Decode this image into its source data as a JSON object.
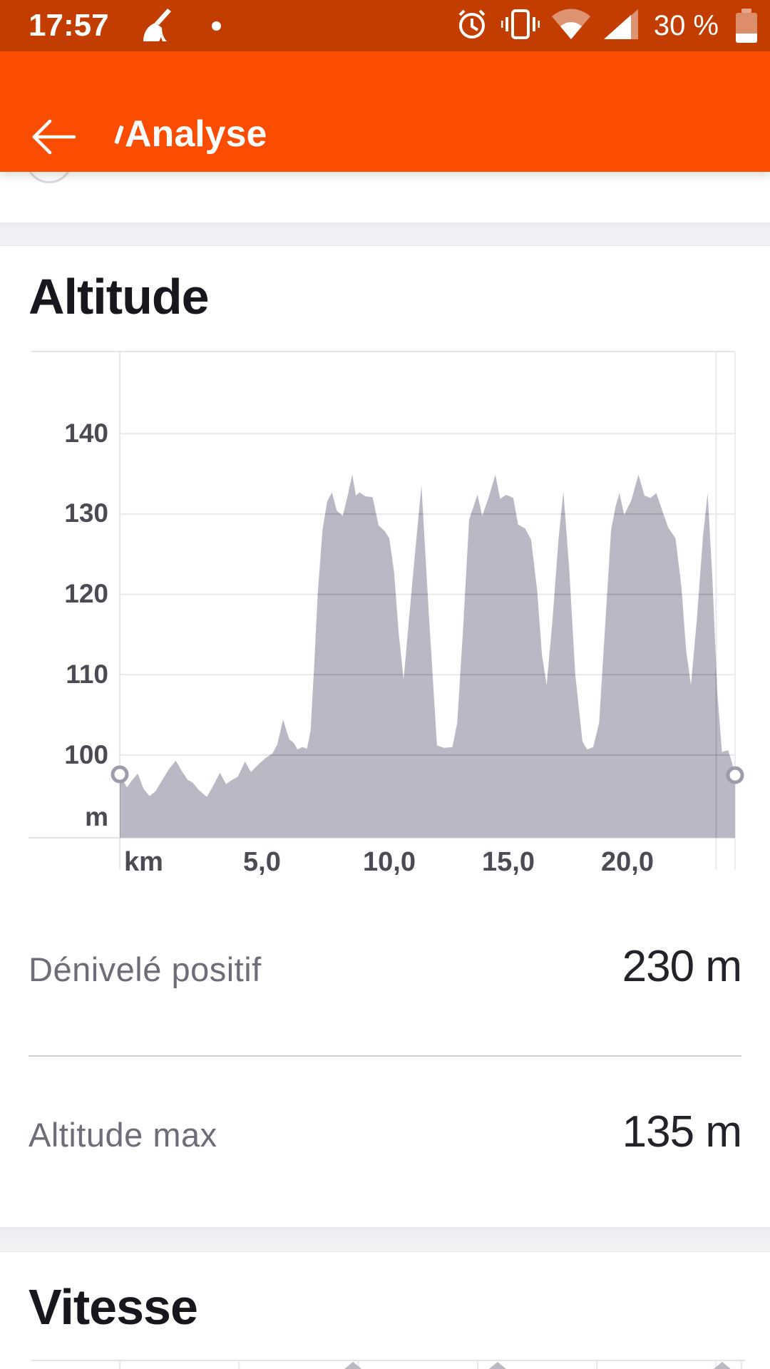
{
  "colors": {
    "accent": "#FB4D01",
    "status_bar_bg": "#C33D00",
    "chart_fill": "#B9B9C6",
    "grid_line": "#E7E7EB",
    "marker_stroke": "#9C9CAB",
    "title_text": "#17171D",
    "label_text": "#6D6D77",
    "value_text": "#222228"
  },
  "status_bar": {
    "time": "17:57",
    "battery_text": "30 %",
    "icons": [
      "broom-icon",
      "notification-dot",
      "alarm-icon",
      "vibrate-icon",
      "wifi-icon",
      "signal-icon",
      "battery-icon"
    ]
  },
  "header": {
    "title": "Analyse",
    "back_icon": "arrow-left-icon"
  },
  "altitude_section": {
    "title": "Altitude",
    "stats": [
      {
        "label": "Dénivelé positif",
        "value": "230 m"
      },
      {
        "label": "Altitude max",
        "value": "135 m"
      }
    ]
  },
  "speed_section": {
    "title": "Vitesse"
  },
  "chart_data": [
    {
      "type": "area",
      "title": "Altitude",
      "xlabel": "km",
      "ylabel": "m",
      "x_tick_labels": [
        "km",
        "5,0",
        "10,0",
        "15,0",
        "20,0"
      ],
      "x_tick_values_km": [
        0,
        5,
        10,
        15,
        20
      ],
      "y_tick_labels": [
        "140",
        "130",
        "120",
        "110",
        "100"
      ],
      "y_tick_values_m": [
        140,
        130,
        120,
        110,
        100
      ],
      "x_range_km": [
        0,
        25.8
      ],
      "y_visible_range_m": [
        89.7,
        150.3
      ],
      "grid": true,
      "start_marker": {
        "km": 0.0,
        "alt_m": 97.6
      },
      "end_marker": {
        "km": 25.8,
        "alt_m": 97.5
      },
      "series": [
        {
          "name": "altitude_m",
          "points": [
            [
              0.0,
              97.6
            ],
            [
              0.3,
              96.0
            ],
            [
              0.5,
              96.8
            ],
            [
              0.75,
              97.7
            ],
            [
              1.0,
              95.8
            ],
            [
              1.25,
              94.9
            ],
            [
              1.5,
              95.5
            ],
            [
              1.8,
              97.0
            ],
            [
              2.1,
              98.4
            ],
            [
              2.35,
              99.3
            ],
            [
              2.6,
              98.0
            ],
            [
              2.85,
              96.9
            ],
            [
              3.05,
              96.6
            ],
            [
              3.3,
              95.7
            ],
            [
              3.65,
              94.8
            ],
            [
              3.9,
              96.1
            ],
            [
              4.2,
              97.8
            ],
            [
              4.45,
              96.4
            ],
            [
              4.7,
              96.9
            ],
            [
              4.95,
              97.3
            ],
            [
              5.25,
              99.2
            ],
            [
              5.5,
              97.9
            ],
            [
              5.8,
              98.8
            ],
            [
              6.1,
              99.6
            ],
            [
              6.4,
              100.2
            ],
            [
              6.6,
              101.3
            ],
            [
              6.85,
              104.4
            ],
            [
              7.1,
              102.0
            ],
            [
              7.3,
              101.5
            ],
            [
              7.45,
              100.7
            ],
            [
              7.65,
              101.0
            ],
            [
              7.85,
              100.8
            ],
            [
              8.0,
              103.0
            ],
            [
              8.15,
              111.0
            ],
            [
              8.3,
              120.0
            ],
            [
              8.5,
              128.0
            ],
            [
              8.7,
              131.6
            ],
            [
              8.9,
              132.7
            ],
            [
              9.1,
              130.4
            ],
            [
              9.35,
              129.8
            ],
            [
              9.55,
              132.2
            ],
            [
              9.75,
              134.9
            ],
            [
              9.9,
              132.3
            ],
            [
              10.05,
              132.7
            ],
            [
              10.3,
              132.2
            ],
            [
              10.6,
              132.1
            ],
            [
              10.85,
              128.6
            ],
            [
              11.1,
              127.9
            ],
            [
              11.3,
              127.0
            ],
            [
              11.5,
              122.8
            ],
            [
              11.7,
              115.0
            ],
            [
              11.9,
              109.4
            ],
            [
              12.25,
              121.0
            ],
            [
              12.65,
              133.6
            ],
            [
              12.95,
              118.0
            ],
            [
              13.3,
              101.2
            ],
            [
              13.6,
              100.9
            ],
            [
              13.95,
              101.0
            ],
            [
              14.15,
              104.0
            ],
            [
              14.4,
              116.0
            ],
            [
              14.65,
              129.3
            ],
            [
              15.0,
              132.4
            ],
            [
              15.2,
              129.8
            ],
            [
              15.45,
              131.9
            ],
            [
              15.75,
              134.9
            ],
            [
              15.95,
              131.9
            ],
            [
              16.2,
              132.4
            ],
            [
              16.5,
              132.0
            ],
            [
              16.7,
              128.7
            ],
            [
              17.0,
              128.2
            ],
            [
              17.25,
              126.8
            ],
            [
              17.5,
              120.5
            ],
            [
              17.7,
              112.5
            ],
            [
              17.9,
              108.7
            ],
            [
              18.15,
              117.0
            ],
            [
              18.4,
              127.0
            ],
            [
              18.6,
              132.8
            ],
            [
              18.85,
              123.0
            ],
            [
              19.1,
              110.0
            ],
            [
              19.4,
              101.7
            ],
            [
              19.6,
              100.7
            ],
            [
              19.85,
              101.0
            ],
            [
              20.1,
              104.0
            ],
            [
              20.35,
              116.0
            ],
            [
              20.6,
              128.0
            ],
            [
              20.8,
              131.1
            ],
            [
              20.95,
              132.6
            ],
            [
              21.15,
              129.9
            ],
            [
              21.45,
              131.7
            ],
            [
              21.75,
              134.9
            ],
            [
              22.0,
              132.3
            ],
            [
              22.25,
              132.0
            ],
            [
              22.5,
              132.6
            ],
            [
              22.75,
              130.4
            ],
            [
              23.0,
              128.3
            ],
            [
              23.3,
              127.0
            ],
            [
              23.55,
              121.0
            ],
            [
              23.75,
              113.0
            ],
            [
              23.95,
              108.7
            ],
            [
              24.2,
              117.0
            ],
            [
              24.45,
              127.0
            ],
            [
              24.65,
              132.6
            ],
            [
              24.85,
              122.0
            ],
            [
              25.05,
              108.0
            ],
            [
              25.25,
              100.4
            ],
            [
              25.5,
              100.6
            ],
            [
              25.65,
              99.3
            ],
            [
              25.8,
              97.5
            ]
          ]
        }
      ]
    },
    {
      "type": "area",
      "title": "Vitesse",
      "note": "only top edge visible at screen bottom",
      "visible_peak_positions_km": [
        9.78,
        15.84,
        25.26
      ]
    }
  ]
}
